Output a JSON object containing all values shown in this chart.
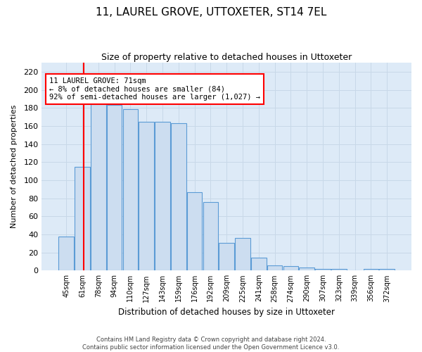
{
  "title": "11, LAUREL GROVE, UTTOXETER, ST14 7EL",
  "subtitle": "Size of property relative to detached houses in Uttoxeter",
  "xlabel": "Distribution of detached houses by size in Uttoxeter",
  "ylabel": "Number of detached properties",
  "categories": [
    "45sqm",
    "61sqm",
    "78sqm",
    "94sqm",
    "110sqm",
    "127sqm",
    "143sqm",
    "159sqm",
    "176sqm",
    "192sqm",
    "209sqm",
    "225sqm",
    "241sqm",
    "258sqm",
    "274sqm",
    "290sqm",
    "307sqm",
    "323sqm",
    "339sqm",
    "356sqm",
    "372sqm"
  ],
  "bar_heights": [
    38,
    115,
    184,
    183,
    179,
    165,
    165,
    163,
    87,
    76,
    31,
    36,
    14,
    6,
    5,
    3,
    2,
    2,
    0,
    2,
    2
  ],
  "bar_color": "#ccddf0",
  "bar_edge_color": "#5b9bd5",
  "annotation_box_color": "#ffffff",
  "annotation_border_color": "#ff0000",
  "vline_color": "#ff0000",
  "grid_color": "#c8d8e8",
  "background_color": "#ddeaf7",
  "annotation_line1": "11 LAUREL GROVE: 71sqm",
  "annotation_line2": "← 8% of detached houses are smaller (84)",
  "annotation_line3": "92% of semi-detached houses are larger (1,027) →",
  "ylim": [
    0,
    230
  ],
  "yticks": [
    0,
    20,
    40,
    60,
    80,
    100,
    120,
    140,
    160,
    180,
    200,
    220
  ],
  "footnote1": "Contains HM Land Registry data © Crown copyright and database right 2024.",
  "footnote2": "Contains public sector information licensed under the Open Government Licence v3.0."
}
